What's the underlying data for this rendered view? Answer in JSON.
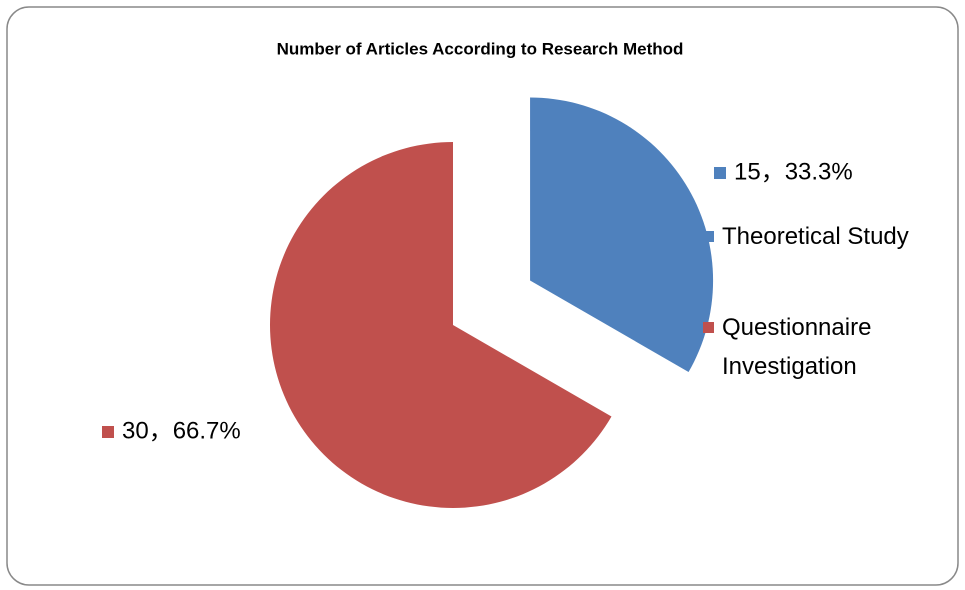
{
  "chart_data": {
    "type": "pie",
    "title": "Number of Articles According to Research Method",
    "categories": [
      "Theoretical Study",
      "Questionnaire Investigation"
    ],
    "values": [
      15,
      30
    ],
    "value_labels": [
      "15，33.3%",
      "30，66.7%"
    ],
    "colors": [
      "#4f81bd",
      "#c0504d"
    ],
    "legend": "right"
  }
}
